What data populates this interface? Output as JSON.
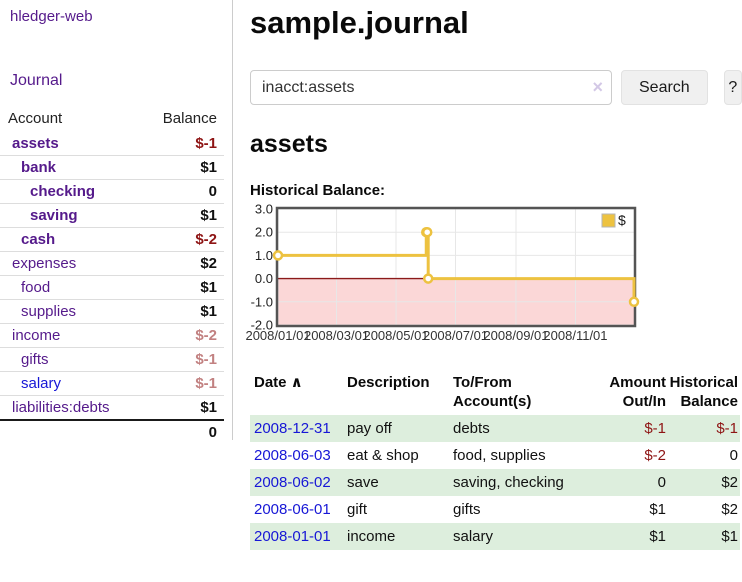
{
  "app": {
    "brand": "hledger-web"
  },
  "sidebar": {
    "journal_link": "Journal",
    "col_account": "Account",
    "col_balance": "Balance",
    "accounts": [
      {
        "name": "assets",
        "depth": 1,
        "bold": true,
        "blue": false,
        "balance": "$-1",
        "tone": "neg"
      },
      {
        "name": "bank",
        "depth": 2,
        "bold": true,
        "blue": false,
        "balance": "$1",
        "tone": "pos"
      },
      {
        "name": "checking",
        "depth": 3,
        "bold": true,
        "blue": false,
        "balance": "0",
        "tone": "pos"
      },
      {
        "name": "saving",
        "depth": 3,
        "bold": true,
        "blue": false,
        "balance": "$1",
        "tone": "pos"
      },
      {
        "name": "cash",
        "depth": 2,
        "bold": true,
        "blue": false,
        "balance": "$-2",
        "tone": "neg"
      },
      {
        "name": "expenses",
        "depth": 1,
        "bold": false,
        "blue": false,
        "balance": "$2",
        "tone": "pos"
      },
      {
        "name": "food",
        "depth": 2,
        "bold": false,
        "blue": false,
        "balance": "$1",
        "tone": "pos"
      },
      {
        "name": "supplies",
        "depth": 2,
        "bold": false,
        "blue": false,
        "balance": "$1",
        "tone": "pos"
      },
      {
        "name": "income",
        "depth": 1,
        "bold": false,
        "blue": false,
        "balance": "$-2",
        "tone": "negm"
      },
      {
        "name": "gifts",
        "depth": 2,
        "bold": false,
        "blue": false,
        "balance": "$-1",
        "tone": "negm"
      },
      {
        "name": "salary",
        "depth": 2,
        "bold": false,
        "blue": true,
        "balance": "$-1",
        "tone": "negm"
      },
      {
        "name": "liabilities:debts",
        "depth": 1,
        "bold": false,
        "blue": false,
        "balance": "$1",
        "tone": "pos"
      }
    ],
    "total": "0"
  },
  "header": {
    "title": "sample.journal"
  },
  "search": {
    "value": "inacct:assets",
    "clear_icon": "×",
    "search_button": "Search",
    "help_button": "?"
  },
  "account_page": {
    "heading": "assets",
    "chart_label": "Historical Balance:"
  },
  "chart_data": {
    "type": "line",
    "step": true,
    "title": "Historical Balance",
    "legend_position": "top-right",
    "grid": true,
    "ylim": [
      -2,
      3
    ],
    "y_ticks": [
      "3.0",
      "2.0",
      "1.0",
      "0.0",
      "-1.0",
      "-2.0"
    ],
    "y_tick_values": [
      3,
      2,
      1,
      0,
      -1,
      -2
    ],
    "x_max_day": 365,
    "x_ticks": [
      {
        "label": "2008/01/01",
        "day": 0
      },
      {
        "label": "2008/03/01",
        "day": 60
      },
      {
        "label": "2008/05/01",
        "day": 121
      },
      {
        "label": "2008/07/01",
        "day": 182
      },
      {
        "label": "2008/09/01",
        "day": 244
      },
      {
        "label": "2008/11/01",
        "day": 305
      }
    ],
    "series": [
      {
        "name": "$",
        "color": "#EDC240",
        "points": [
          {
            "date": "2008-01-01",
            "day": 0,
            "value": 1
          },
          {
            "date": "2008-06-01",
            "day": 152,
            "value": 2
          },
          {
            "date": "2008-06-02",
            "day": 153,
            "value": 2
          },
          {
            "date": "2008-06-03",
            "day": 154,
            "value": 0
          },
          {
            "date": "2008-12-31",
            "day": 365,
            "value": -1
          }
        ]
      }
    ],
    "negative_region_color": "#fbd7d7",
    "zero_line_color": "#8b1a1a"
  },
  "register": {
    "columns": [
      {
        "label": "Date",
        "sort_icon": "∧",
        "align": "left"
      },
      {
        "label": "Description",
        "align": "left"
      },
      {
        "label": "To/From Account(s)",
        "align": "left"
      },
      {
        "label": "Amount Out/In",
        "align": "right"
      },
      {
        "label": "Historical Balance",
        "align": "right"
      }
    ],
    "rows": [
      {
        "date": "2008-12-31",
        "description": "pay off",
        "accounts": "debts",
        "amount": "$-1",
        "amount_tone": "neg",
        "balance": "$-1",
        "balance_tone": "neg",
        "shade": true
      },
      {
        "date": "2008-06-03",
        "description": "eat & shop",
        "accounts": "food, supplies",
        "amount": "$-2",
        "amount_tone": "neg",
        "balance": "0",
        "balance_tone": "pos",
        "shade": false
      },
      {
        "date": "2008-06-02",
        "description": "save",
        "accounts": "saving, checking",
        "amount": "0",
        "amount_tone": "pos",
        "balance": "$2",
        "balance_tone": "pos",
        "shade": true
      },
      {
        "date": "2008-06-01",
        "description": "gift",
        "accounts": "gifts",
        "amount": "$1",
        "amount_tone": "pos",
        "balance": "$2",
        "balance_tone": "pos",
        "shade": false
      },
      {
        "date": "2008-01-01",
        "description": "income",
        "accounts": "salary",
        "amount": "$1",
        "amount_tone": "pos",
        "balance": "$1",
        "balance_tone": "pos",
        "shade": true
      }
    ]
  }
}
